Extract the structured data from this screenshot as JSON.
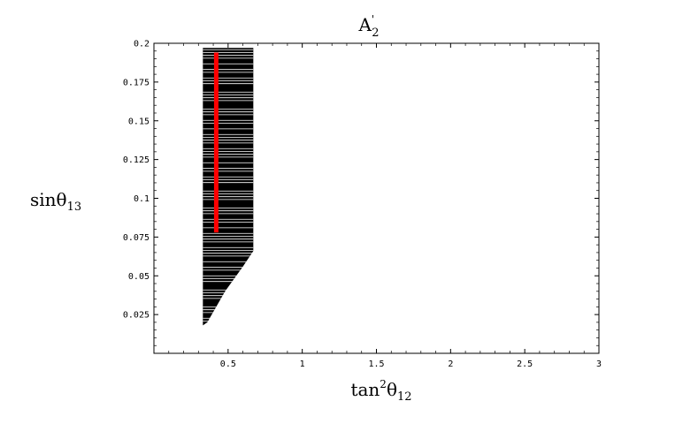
{
  "chart_data": {
    "type": "scatter",
    "title": {
      "base": "A",
      "superscript": "'",
      "subscript": "2"
    },
    "xlabel": {
      "base": "tan",
      "superscript": "2",
      "theta": "θ",
      "subscript": "12"
    },
    "ylabel": {
      "base": "sin",
      "theta": "θ",
      "subscript": "13"
    },
    "xlim": [
      0,
      3
    ],
    "ylim": [
      0,
      0.2
    ],
    "xticks": [
      0.5,
      1,
      1.5,
      2,
      2.5,
      3
    ],
    "xtick_labels": [
      "0.5",
      "1",
      "1.5",
      "2",
      "2.5",
      "3"
    ],
    "yticks": [
      0.025,
      0.05,
      0.075,
      0.1,
      0.125,
      0.15,
      0.175,
      0.2
    ],
    "ytick_labels": [
      "0.025",
      "0.05",
      "0.075",
      "0.1",
      "0.125",
      "0.15",
      "0.175",
      "0.2"
    ],
    "grid": false,
    "legend": "none",
    "series": [
      {
        "kind": "region",
        "color": "#000000",
        "boundary": [
          [
            0.33,
            0.018
          ],
          [
            0.33,
            0.197
          ],
          [
            0.67,
            0.197
          ],
          [
            0.67,
            0.066
          ],
          [
            0.6,
            0.056
          ],
          [
            0.48,
            0.04
          ],
          [
            0.36,
            0.02
          ]
        ]
      },
      {
        "kind": "line",
        "color": "#ff0000",
        "x": [
          0.42,
          0.42
        ],
        "y": [
          0.078,
          0.194
        ]
      }
    ]
  }
}
